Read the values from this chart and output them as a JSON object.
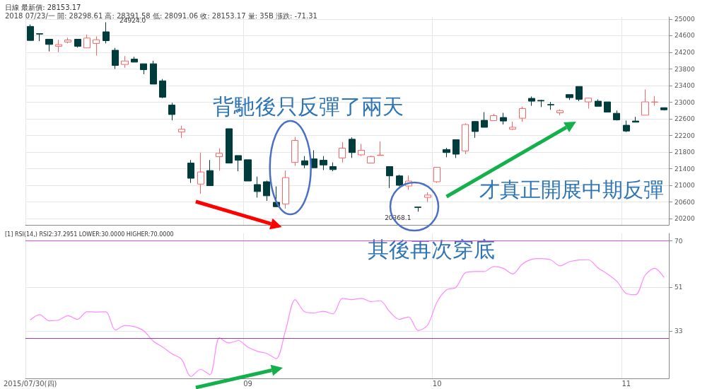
{
  "chart_data": [
    {
      "type": "candlestick",
      "title": "日線 最新價: 28153.17",
      "subtitle": "2018 07/23/一 開: 28298.61 高: 28391.58 低: 28091.06 收: 28153.17 量: 35B 漲跌: -71.31",
      "categories": [
        null,
        null,
        null,
        null,
        null,
        null,
        null,
        null,
        null,
        null,
        null,
        null,
        null,
        null,
        null,
        null,
        null,
        null,
        null,
        null,
        null,
        null,
        null,
        null,
        null,
        null,
        null,
        null,
        null,
        null,
        null,
        null,
        null,
        null,
        null,
        null,
        null,
        null,
        null,
        null,
        null,
        null,
        null,
        null,
        null,
        null,
        null,
        null,
        null,
        null,
        null,
        null,
        null,
        null,
        null,
        null,
        null,
        null,
        null,
        null,
        null,
        null,
        null,
        null,
        null,
        null,
        null,
        null
      ],
      "ohlc": [
        [
          24823,
          24869,
          24486,
          24486
        ],
        [
          24650,
          24650,
          24469,
          24638
        ],
        [
          24515,
          24515,
          24222,
          24390
        ],
        [
          24346,
          24503,
          24205,
          24385
        ],
        [
          24447,
          24553,
          24414,
          24498
        ],
        [
          24515,
          24515,
          24313,
          24346
        ],
        [
          24306,
          24626,
          24306,
          24542
        ],
        [
          24414,
          24582,
          24120,
          24503
        ],
        [
          24693,
          24924,
          24414,
          24481
        ],
        [
          24250,
          24306,
          23800,
          23885
        ],
        [
          23908,
          24110,
          23829,
          23992
        ],
        [
          24036,
          24093,
          23964,
          23964
        ],
        [
          23925,
          23925,
          23672,
          23783
        ],
        [
          23925,
          23997,
          23436,
          23436
        ],
        [
          23514,
          23559,
          23099,
          23121
        ],
        [
          22931,
          22986,
          22565,
          22705
        ],
        [
          22284,
          22435,
          22139,
          22351
        ],
        [
          21537,
          21610,
          21061,
          21172
        ],
        [
          21032,
          21790,
          20796,
          21323
        ],
        [
          21357,
          21610,
          20993,
          20993
        ],
        [
          21689,
          21891,
          21352,
          21773
        ],
        [
          22363,
          22363,
          21537,
          21537
        ],
        [
          21718,
          21718,
          21340,
          21605
        ],
        [
          21617,
          21617,
          21105,
          21105
        ],
        [
          21020,
          21212,
          20707,
          20852
        ],
        [
          21088,
          21116,
          20627,
          20750
        ],
        [
          20594,
          20976,
          20488,
          20488
        ],
        [
          20555,
          21357,
          20442,
          21188
        ],
        [
          21553,
          22166,
          21470,
          22082
        ],
        [
          21593,
          21706,
          21414,
          21492
        ],
        [
          21638,
          21846,
          21424,
          21424
        ],
        [
          21605,
          21706,
          21369,
          21492
        ],
        [
          21453,
          21554,
          21340,
          21380
        ],
        [
          21660,
          22043,
          21549,
          21896
        ],
        [
          22110,
          22156,
          21660,
          21790
        ],
        [
          21735,
          21998,
          21706,
          21846
        ],
        [
          21537,
          21718,
          21537,
          21689
        ],
        [
          21720,
          22055,
          21720,
          21728
        ],
        [
          21453,
          21453,
          20936,
          21229
        ],
        [
          21229,
          21256,
          20981,
          21003
        ],
        [
          20986,
          21239,
          20892,
          21104
        ],
        [
          20480,
          20480,
          20368.1,
          20470
        ],
        [
          20712,
          20835,
          20599,
          20767
        ],
        [
          21088,
          21436,
          21061,
          21436
        ],
        [
          21863,
          21903,
          21677,
          21790
        ],
        [
          22099,
          22099,
          21660,
          21751
        ],
        [
          21829,
          22493,
          21751,
          22464
        ],
        [
          22537,
          22537,
          22144,
          22296
        ],
        [
          22565,
          22762,
          22397,
          22397
        ],
        [
          22560,
          22717,
          22560,
          22678
        ],
        [
          22633,
          22745,
          22464,
          22548
        ],
        [
          22351,
          22532,
          22334,
          22397
        ],
        [
          22616,
          22897,
          22532,
          22847
        ],
        [
          23093,
          23138,
          22914,
          23025
        ],
        [
          23045,
          23060,
          22885,
          23030
        ],
        [
          22945,
          23008,
          22818,
          22935
        ],
        [
          22745,
          22830,
          22688,
          22801
        ],
        [
          23184,
          23184,
          23054,
          23110
        ],
        [
          23379,
          23379,
          23025,
          23071
        ],
        [
          23008,
          23110,
          22847,
          23099
        ],
        [
          23025,
          23071,
          22902,
          22902
        ],
        [
          23008,
          23008,
          22762,
          22762
        ],
        [
          22734,
          22801,
          22560,
          22577
        ],
        [
          22447,
          22560,
          22284,
          22307
        ],
        [
          22548,
          22649,
          22520,
          22520
        ],
        [
          22688,
          23307,
          22688,
          23008
        ],
        [
          23000,
          23150,
          22914,
          23008
        ],
        [
          22869,
          22869,
          22801,
          22818
        ]
      ],
      "colors": [
        "#003c3c",
        "#003c3c",
        "#003c3c",
        "#ff6464",
        "#ff6464",
        "#003c3c",
        "#ff6464",
        "#ff6464",
        "#003c3c",
        "#003c3c",
        "#ff6464",
        "#003c3c",
        "#003c3c",
        "#003c3c",
        "#003c3c",
        "#003c3c",
        "#ff6464",
        "#003c3c",
        "#ff6464",
        "#003c3c",
        "#ff6464",
        "#003c3c",
        "#003c3c",
        "#003c3c",
        "#003c3c",
        "#003c3c",
        "#003c3c",
        "#ff6464",
        "#ff6464",
        "#003c3c",
        "#003c3c",
        "#003c3c",
        "#003c3c",
        "#ff6464",
        "#003c3c",
        "#ff6464",
        "#ff6464",
        "#ff6464",
        "#003c3c",
        "#003c3c",
        "#ff6464",
        "#003c3c",
        "#ff6464",
        "#ff6464",
        "#003c3c",
        "#003c3c",
        "#ff6464",
        "#003c3c",
        "#003c3c",
        "#ff6464",
        "#003c3c",
        "#ff6464",
        "#ff6464",
        "#003c3c",
        "#003c3c",
        "#003c3c",
        "#ff6464",
        "#003c3c",
        "#003c3c",
        "#ff6464",
        "#003c3c",
        "#003c3c",
        "#003c3c",
        "#003c3c",
        "#003c3c",
        "#ff6464",
        "#ff6464",
        "#003c3c"
      ],
      "ylim": [
        20050,
        25050
      ],
      "yticks": [
        20200,
        20600,
        21000,
        21400,
        21800,
        22200,
        22600,
        23000,
        23400,
        23800,
        24200,
        24600,
        25000
      ],
      "grid": true,
      "tick_labels": "y",
      "annotations": [
        "背馳後只反彈了兩天",
        "才真正開展中期反彈",
        "24924.0",
        "20368.1"
      ]
    },
    {
      "type": "line",
      "title": "[1] RSI(14,) RSI2:37.2951 LOWER:30.0000 HIGHER:70.0000",
      "categories": [
        "2015/07/30(四)",
        null,
        null,
        null,
        null,
        null,
        null,
        null,
        null,
        null,
        null,
        null,
        null,
        null,
        null,
        null,
        null,
        null,
        null,
        null,
        null,
        null,
        null,
        "09",
        null,
        null,
        null,
        null,
        null,
        null,
        null,
        null,
        null,
        null,
        null,
        null,
        null,
        null,
        null,
        null,
        null,
        null,
        null,
        "10",
        null,
        null,
        null,
        null,
        null,
        null,
        null,
        null,
        null,
        null,
        null,
        null,
        null,
        null,
        null,
        null,
        null,
        null,
        null,
        "11",
        null,
        null,
        null,
        null
      ],
      "series": [
        {
          "color": "#ff88ff",
          "values": [
            37.6,
            39.8,
            37.3,
            37.6,
            39.4,
            37.9,
            41.0,
            40.9,
            41.0,
            33.5,
            35.4,
            34.9,
            33.2,
            29.0,
            26.5,
            23.8,
            21.5,
            14.5,
            17.4,
            15.2,
            30.3,
            28.2,
            29.2,
            26.5,
            24.8,
            23.9,
            21.8,
            33.5,
            46.0,
            41.0,
            40.5,
            41.2,
            40.1,
            46.5,
            46.0,
            46.5,
            45.2,
            45.5,
            41.0,
            37.9,
            38.9,
            33.3,
            35.5,
            45.0,
            50.0,
            51.0,
            57.0,
            57.5,
            57.5,
            59.5,
            58.8,
            56.5,
            60.5,
            62.5,
            62.8,
            62.3,
            59.8,
            61.5,
            62.2,
            62.3,
            59.0,
            56.5,
            53.5,
            48.5,
            48.0,
            56.0,
            58.8,
            55.0
          ]
        }
      ],
      "ylim": [
        13.7,
        73.1
      ],
      "yticks": [
        33,
        51,
        70
      ],
      "ref_lines": [
        {
          "axis": "y",
          "value": 70,
          "color": "#e34fe3"
        },
        {
          "axis": "y",
          "value": 30,
          "color": "#a040a0"
        }
      ],
      "grid": true,
      "annotations": [
        "其後再次穿底"
      ]
    }
  ]
}
